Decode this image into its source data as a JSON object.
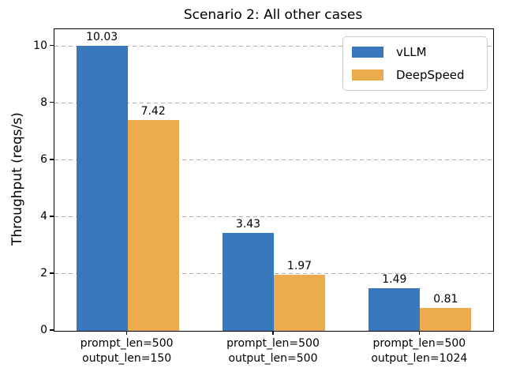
{
  "chart_data": {
    "type": "bar",
    "title": "Scenario 2: All other cases",
    "xlabel": "",
    "ylabel": "Throughput (reqs/s)",
    "categories": [
      [
        "prompt_len=500",
        "output_len=150"
      ],
      [
        "prompt_len=500",
        "output_len=500"
      ],
      [
        "prompt_len=500",
        "output_len=1024"
      ]
    ],
    "series": [
      {
        "name": "vLLM",
        "color": "#3A78BE",
        "values": [
          10.03,
          3.43,
          1.49
        ],
        "value_labels": [
          "10.03",
          "3.43",
          "1.49"
        ]
      },
      {
        "name": "DeepSpeed",
        "color": "#ECAC4E",
        "values": [
          7.42,
          1.97,
          0.81
        ],
        "value_labels": [
          "7.42",
          "1.97",
          "0.81"
        ]
      }
    ],
    "yticks": [
      0,
      2,
      4,
      6,
      8,
      10
    ],
    "ylim": [
      0,
      10.6
    ],
    "grid": "horizontal-dashed",
    "legend_position": "upper right",
    "colors": {
      "grid": "#b0b0b0",
      "axis": "#000000",
      "text": "#000000",
      "legend_border": "#cccccc",
      "background": "#ffffff"
    }
  }
}
